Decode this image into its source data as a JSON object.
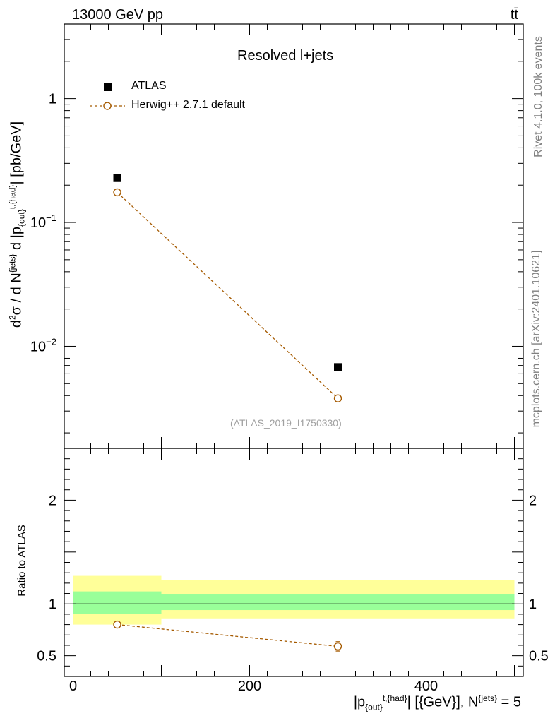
{
  "header": {
    "energy_label": "13000 GeV pp",
    "process_label": "tt̄"
  },
  "side_labels": {
    "rivet": "Rivet 4.1.0,  100k events",
    "mcplots": "mcplots.cern.ch [arXiv:2401.10621]"
  },
  "chart_data": [
    {
      "type": "scatter",
      "panel": "main",
      "title": "Resolved l+jets",
      "analysis_tag": "(ATLAS_2019_I1750330)",
      "ylabel": "d²σ / d N^{jets} d |p_{out}^{t,{had}}| [pb/GeV]",
      "yscale": "log",
      "ylim": [
        0.0015,
        4.0
      ],
      "xlim": [
        -10,
        510
      ],
      "y_ticks": [
        {
          "value": 0.01,
          "label": "10",
          "sup": "−2"
        },
        {
          "value": 0.1,
          "label": "10",
          "sup": "−1"
        },
        {
          "value": 1,
          "label": "1",
          "sup": ""
        }
      ],
      "legend": {
        "position": "top-left",
        "entries": [
          "ATLAS",
          "Herwig++ 2.7.1 default"
        ]
      },
      "series": [
        {
          "name": "ATLAS",
          "style": "black-square",
          "x": [
            50,
            300
          ],
          "y": [
            0.228,
            0.0068
          ]
        },
        {
          "name": "Herwig++ 2.7.1 default",
          "style": "orange-open-circle-dashed",
          "x": [
            50,
            300
          ],
          "y": [
            0.175,
            0.0038
          ]
        }
      ]
    },
    {
      "type": "line",
      "panel": "ratio",
      "ylabel": "Ratio to ATLAS",
      "xlabel": "|p_{out}^{t,{had}}| [{GeV}], N^{jets} = 5",
      "xlim": [
        -10,
        510
      ],
      "ylim": [
        0.3,
        2.5
      ],
      "x_ticks": [
        0,
        200,
        400
      ],
      "y_ticks": [
        0.5,
        1,
        2
      ],
      "reference_line": 1.0,
      "bands": [
        {
          "name": "total uncertainty",
          "color": "#ffff99",
          "bins": [
            [
              0,
              100,
              0.8,
              1.27
            ],
            [
              100,
              500,
              0.86,
              1.23
            ]
          ]
        },
        {
          "name": "statistical uncertainty",
          "color": "#99ff99",
          "bins": [
            [
              0,
              100,
              0.9,
              1.12
            ],
            [
              100,
              500,
              0.94,
              1.09
            ]
          ]
        }
      ],
      "series": [
        {
          "name": "Herwig++ 2.7.1 default",
          "x": [
            50,
            300
          ],
          "y": [
            0.8,
            0.59
          ],
          "yerr": [
            0.0,
            0.045
          ]
        }
      ]
    }
  ],
  "colors": {
    "mc": "#a55a00",
    "band_total": "#ffff99",
    "band_stat": "#99ff99",
    "side_text": "#808080",
    "tag_text": "#a0a0a0"
  }
}
